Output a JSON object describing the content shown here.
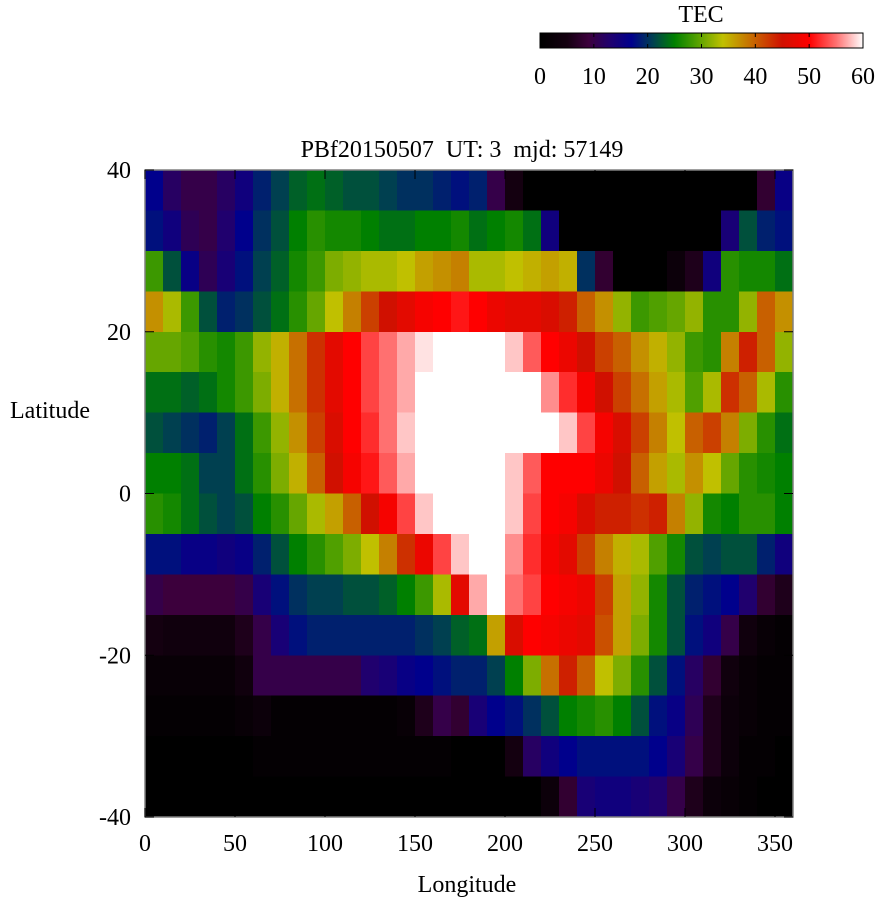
{
  "chart_data": {
    "type": "heatmap",
    "title": "PBf20150507  UT: 3  mjd: 57149",
    "xlabel": "Longitude",
    "ylabel": "Latitude",
    "xlim": [
      0,
      360
    ],
    "ylim": [
      -40,
      40
    ],
    "x_ticks": [
      0,
      50,
      100,
      150,
      200,
      250,
      300,
      350
    ],
    "y_ticks": [
      40,
      20,
      0,
      -20,
      -40
    ],
    "x_cell_size": 10,
    "y_cell_size": 5,
    "lat_rows_top_to_bottom": [
      40,
      35,
      30,
      25,
      20,
      15,
      10,
      5,
      0,
      -5,
      -10,
      -15,
      -20,
      -25,
      -30,
      -35
    ],
    "values": [
      [
        17,
        12,
        10,
        10,
        12,
        15,
        19,
        21,
        23,
        24,
        23,
        22,
        22,
        21,
        20,
        20,
        19,
        18,
        19,
        10,
        5,
        0,
        0,
        0,
        0,
        0,
        0,
        0,
        0,
        0,
        0,
        0,
        0,
        0,
        8,
        16
      ],
      [
        18,
        15,
        11,
        10,
        13,
        17,
        20,
        22,
        25,
        27,
        26,
        26,
        25,
        24,
        24,
        25,
        25,
        26,
        24,
        25,
        26,
        24,
        15,
        0,
        0,
        0,
        0,
        0,
        0,
        0,
        0,
        0,
        14,
        22,
        19,
        18
      ],
      [
        28,
        22,
        16,
        11,
        14,
        18,
        21,
        23,
        26,
        28,
        31,
        32,
        33,
        33,
        34,
        36,
        37,
        38,
        33,
        33,
        34,
        35,
        36,
        35,
        20,
        8,
        0,
        0,
        0,
        3,
        6,
        15,
        27,
        26,
        26,
        24
      ],
      [
        37,
        33,
        28,
        22,
        19,
        20,
        22,
        24,
        27,
        30,
        34,
        38,
        42,
        45,
        47,
        49,
        50,
        51,
        50,
        48,
        47,
        47,
        46,
        44,
        40,
        37,
        32,
        28,
        29,
        30,
        32,
        27,
        27,
        32,
        40,
        37
      ],
      [
        30,
        30,
        29,
        27,
        26,
        28,
        32,
        35,
        39,
        43,
        47,
        50,
        53,
        55,
        57,
        59,
        60,
        60,
        60,
        60,
        58,
        54,
        50,
        48,
        45,
        42,
        40,
        37,
        35,
        32,
        28,
        27,
        38,
        44,
        40,
        32
      ],
      [
        24,
        24,
        23,
        24,
        26,
        28,
        31,
        35,
        39,
        43,
        47,
        50,
        53,
        55,
        57,
        60,
        60,
        60,
        60,
        60,
        60,
        60,
        56,
        52,
        49,
        45,
        42,
        39,
        36,
        33,
        29,
        33,
        43,
        40,
        33,
        27
      ],
      [
        22,
        21,
        20,
        19,
        21,
        24,
        28,
        32,
        37,
        42,
        46,
        50,
        52,
        55,
        58,
        60,
        60,
        60,
        60,
        60,
        60,
        60,
        60,
        58,
        53,
        49,
        46,
        42,
        38,
        34,
        40,
        42,
        38,
        31,
        27,
        24
      ],
      [
        25,
        25,
        24,
        21,
        21,
        24,
        27,
        31,
        35,
        40,
        45,
        49,
        51,
        54,
        57,
        60,
        60,
        60,
        60,
        60,
        58,
        54,
        50,
        50,
        50,
        48,
        45,
        40,
        36,
        33,
        37,
        34,
        30,
        27,
        26,
        25
      ],
      [
        27,
        26,
        24,
        22,
        21,
        22,
        25,
        27,
        30,
        33,
        36,
        40,
        45,
        49,
        53,
        58,
        60,
        60,
        60,
        60,
        58,
        53,
        50,
        49,
        46,
        44,
        44,
        43,
        44,
        38,
        32,
        26,
        25,
        27,
        27,
        25
      ],
      [
        18,
        18,
        16,
        16,
        15,
        16,
        19,
        22,
        25,
        27,
        29,
        31,
        34,
        38,
        43,
        48,
        53,
        58,
        60,
        60,
        56,
        52,
        49,
        47,
        42,
        38,
        35,
        33,
        29,
        26,
        22,
        21,
        22,
        22,
        19,
        15
      ],
      [
        10,
        9,
        9,
        9,
        9,
        10,
        14,
        18,
        20,
        21,
        21,
        22,
        22,
        23,
        25,
        28,
        33,
        47,
        57,
        60,
        55,
        53,
        50,
        49,
        48,
        42,
        36,
        32,
        26,
        22,
        19,
        18,
        17,
        13,
        8,
        6
      ],
      [
        5,
        4,
        4,
        4,
        4,
        6,
        10,
        14,
        18,
        19,
        19,
        19,
        19,
        19,
        19,
        20,
        21,
        23,
        24,
        36,
        46,
        50,
        49,
        48,
        47,
        41,
        36,
        31,
        26,
        22,
        18,
        15,
        10,
        4,
        2,
        1
      ],
      [
        2,
        2,
        2,
        2,
        2,
        4,
        10,
        10,
        10,
        10,
        10,
        10,
        13,
        14,
        16,
        17,
        18,
        19,
        19,
        21,
        25,
        31,
        39,
        44,
        40,
        34,
        31,
        27,
        22,
        18,
        12,
        8,
        4,
        2,
        1,
        1
      ],
      [
        1,
        1,
        1,
        1,
        1,
        2,
        3,
        1,
        1,
        1,
        1,
        1,
        1,
        1,
        2,
        6,
        10,
        8,
        14,
        17,
        18,
        20,
        22,
        25,
        26,
        27,
        25,
        22,
        18,
        16,
        11,
        6,
        3,
        2,
        1,
        1
      ],
      [
        0,
        0,
        0,
        0,
        0,
        0,
        1,
        1,
        1,
        1,
        1,
        1,
        1,
        1,
        1,
        1,
        1,
        0,
        0,
        0,
        5,
        12,
        15,
        17,
        18,
        18,
        18,
        18,
        17,
        14,
        10,
        6,
        3,
        1,
        1,
        0
      ],
      [
        0,
        0,
        0,
        0,
        0,
        0,
        0,
        0,
        0,
        0,
        0,
        0,
        0,
        0,
        0,
        0,
        0,
        0,
        0,
        0,
        0,
        0,
        3,
        8,
        14,
        15,
        15,
        14,
        13,
        10,
        6,
        3,
        2,
        1,
        0,
        0
      ]
    ],
    "colorbar": {
      "label": "TEC",
      "range": [
        0,
        60
      ],
      "ticks": [
        0,
        10,
        20,
        30,
        40,
        50,
        60
      ],
      "colormap": [
        [
          0,
          "#000000"
        ],
        [
          5,
          "#140010"
        ],
        [
          9,
          "#3c003c"
        ],
        [
          13,
          "#20006e"
        ],
        [
          17,
          "#00008c"
        ],
        [
          21,
          "#004050"
        ],
        [
          25,
          "#008000"
        ],
        [
          29,
          "#50a000"
        ],
        [
          34,
          "#c0c000"
        ],
        [
          40,
          "#c86000"
        ],
        [
          45,
          "#d01000"
        ],
        [
          50,
          "#ff0000"
        ],
        [
          55,
          "#ff7070"
        ],
        [
          60,
          "#ffffff"
        ]
      ]
    }
  }
}
